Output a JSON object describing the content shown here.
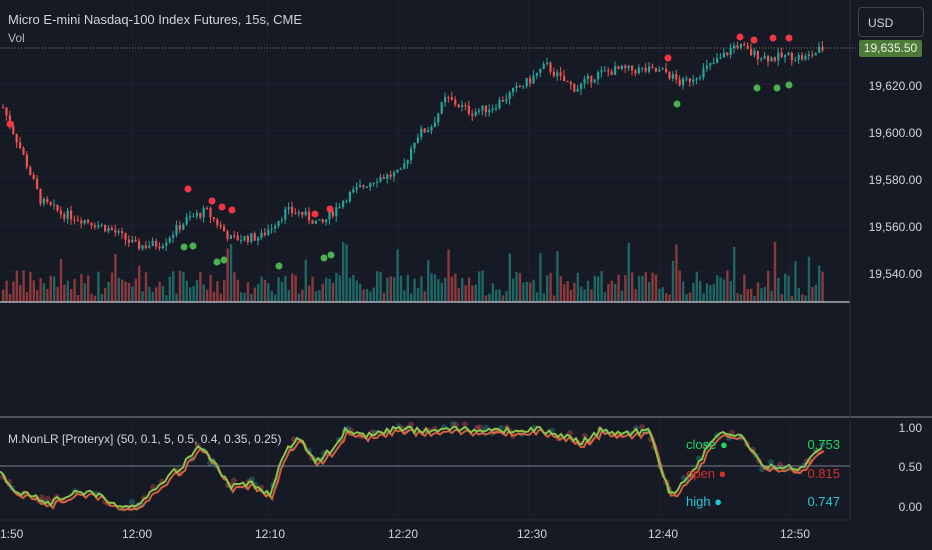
{
  "header": {
    "title": "Micro E-mini Nasdaq-100 Index Futures, 15s, CME",
    "vol_label": "Vol",
    "currency_button": "USD",
    "last_price": "19,635.50"
  },
  "price_axis": {
    "labels": [
      "19,620.00",
      "19,600.00",
      "19,580.00",
      "19,560.00",
      "19,540.00"
    ]
  },
  "indicator": {
    "title": "M.NonLR [Proteryx] (50, 0.1, 5, 0.5, 0.4, 0.35, 0.25)",
    "axis_labels": [
      "1.00",
      "0.50",
      "0.00"
    ],
    "legend": [
      {
        "name": "close",
        "value": "0.753",
        "color": "#1ed760"
      },
      {
        "name": "open",
        "value": "0.815",
        "color": "#d32f2f"
      },
      {
        "name": "high",
        "value": "0.747",
        "color": "#26c6da"
      }
    ]
  },
  "time_axis": {
    "labels": [
      "1:50",
      "12:00",
      "12:10",
      "12:20",
      "12:30",
      "12:40",
      "12:50"
    ]
  },
  "colors": {
    "up": "#26a69a",
    "down": "#ef5350",
    "signal_buy": "#4caf50",
    "signal_sell": "#f23645",
    "osc_main": "#8bc34a",
    "osc_shadow": "#ff7043",
    "background": "#161a25"
  }
}
